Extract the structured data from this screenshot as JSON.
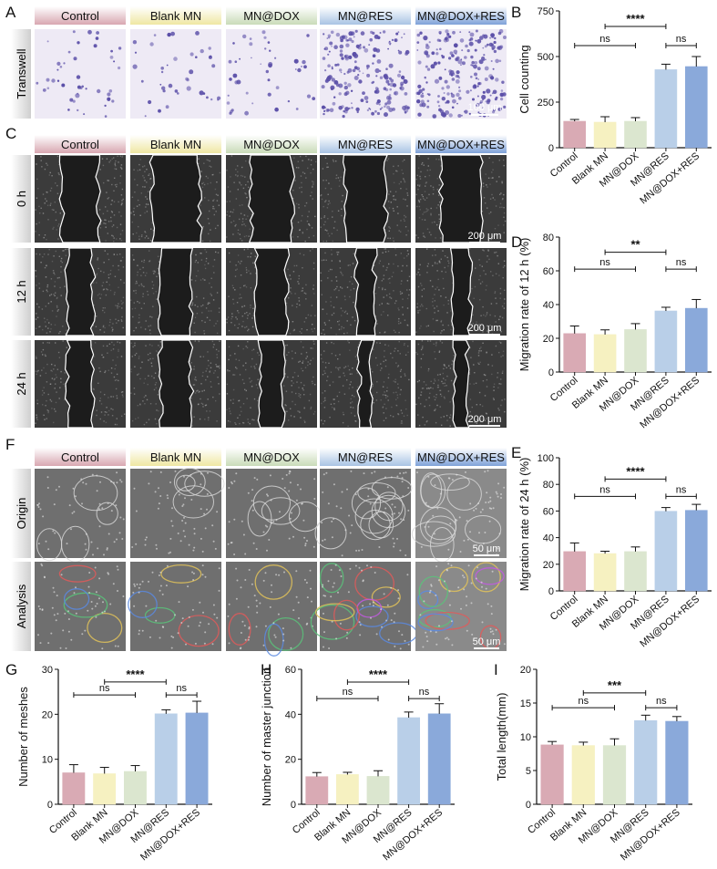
{
  "colors": {
    "bars": [
      "#d9aab4",
      "#f6f1c1",
      "#dbe6cf",
      "#b9cfe8",
      "#8aa9da"
    ],
    "header_tabs": [
      "#d8a7b1",
      "#efe7a3",
      "#c9dbb8",
      "#a9c3e4",
      "#7fa2d8"
    ],
    "crystal_violet": "#5b4fa8",
    "micrograph_dark": "#1c1c1c",
    "tube_gray": "#6f6f6f"
  },
  "panel_labels": {
    "A": "A",
    "B": "B",
    "C": "C",
    "D": "D",
    "E": "E",
    "F": "F",
    "G": "G",
    "H": "H",
    "I": "I"
  },
  "groups": [
    "Control",
    "Blank MN",
    "MN@DOX",
    "MN@RES",
    "MN@DOX+RES"
  ],
  "row_labels": {
    "transwell": "Transwell",
    "h0": "0 h",
    "h12": "12 h",
    "h24": "24 h",
    "origin": "Origin",
    "analysis": "Analysis"
  },
  "scale_bars": {
    "transwell": "100 μm",
    "scratch": "200 μm",
    "tube": "50 μm"
  },
  "icons": {
    "header_tab": "gradient-tab",
    "significance": "bracket"
  },
  "chart_data": [
    {
      "id": "B",
      "type": "bar",
      "categories": [
        "Control",
        "Blank MN",
        "MN@DOX",
        "MN@RES",
        "MN@DOX+RES"
      ],
      "values": [
        145,
        140,
        145,
        428,
        445
      ],
      "errors": [
        10,
        30,
        20,
        30,
        55
      ],
      "ylabel": "Cell counting",
      "ylim": [
        0,
        750
      ],
      "yticks": [
        0,
        250,
        500,
        750
      ],
      "annotations": [
        {
          "from": 0,
          "to": 2,
          "text": "ns",
          "y": 560
        },
        {
          "from": 1,
          "to": 3,
          "text": "****",
          "y": 665
        },
        {
          "from": 3,
          "to": 4,
          "text": "ns",
          "y": 560
        }
      ]
    },
    {
      "id": "D",
      "type": "bar",
      "categories": [
        "Control",
        "Blank MN",
        "MN@DOX",
        "MN@RES",
        "MN@DOX+RES"
      ],
      "values": [
        22.8,
        22.2,
        25.2,
        36.2,
        37.8
      ],
      "errors": [
        4.5,
        2.8,
        3.5,
        2.2,
        5.2
      ],
      "ylabel": "Migration rate of 12 h (%)",
      "ylim": [
        0,
        80
      ],
      "yticks": [
        0,
        20,
        40,
        60,
        80
      ],
      "annotations": [
        {
          "from": 0,
          "to": 2,
          "text": "ns",
          "y": 61
        },
        {
          "from": 1,
          "to": 3,
          "text": "**",
          "y": 71
        },
        {
          "from": 3,
          "to": 4,
          "text": "ns",
          "y": 61
        }
      ]
    },
    {
      "id": "E",
      "type": "bar",
      "categories": [
        "Control",
        "Blank MN",
        "MN@DOX",
        "MN@RES",
        "MN@DOX+RES"
      ],
      "values": [
        29.5,
        28.0,
        29.5,
        59.8,
        60.5
      ],
      "errors": [
        6.5,
        1.8,
        3.5,
        2.8,
        4.5
      ],
      "ylabel": "Migration rate of 24 h (%)",
      "ylim": [
        0,
        100
      ],
      "yticks": [
        0,
        20,
        40,
        60,
        80,
        100
      ],
      "annotations": [
        {
          "from": 0,
          "to": 2,
          "text": "ns",
          "y": 71
        },
        {
          "from": 1,
          "to": 3,
          "text": "****",
          "y": 84
        },
        {
          "from": 3,
          "to": 4,
          "text": "ns",
          "y": 71
        }
      ]
    },
    {
      "id": "G",
      "type": "bar",
      "categories": [
        "Control",
        "Blank MN",
        "MN@DOX",
        "MN@RES",
        "MN@DOX+RES"
      ],
      "values": [
        7.0,
        6.8,
        7.3,
        20.1,
        20.3
      ],
      "errors": [
        1.8,
        1.4,
        1.3,
        0.9,
        2.6
      ],
      "ylabel": "Number of meshes",
      "ylim": [
        0,
        30
      ],
      "yticks": [
        0,
        10,
        20,
        30
      ],
      "annotations": [
        {
          "from": 0,
          "to": 2,
          "text": "ns",
          "y": 24.3
        },
        {
          "from": 1,
          "to": 3,
          "text": "****",
          "y": 27.2
        },
        {
          "from": 3,
          "to": 4,
          "text": "ns",
          "y": 24.3
        }
      ]
    },
    {
      "id": "H",
      "type": "bar",
      "categories": [
        "Control",
        "Blank MN",
        "MN@DOX",
        "MN@RES",
        "MN@DOX+RES"
      ],
      "values": [
        12.3,
        13.2,
        12.4,
        38.5,
        40.2
      ],
      "errors": [
        1.8,
        1.0,
        2.5,
        2.5,
        4.5
      ],
      "ylabel": "Number of master junction",
      "ylim": [
        0,
        60
      ],
      "yticks": [
        0,
        20,
        40,
        60
      ],
      "annotations": [
        {
          "from": 0,
          "to": 2,
          "text": "ns",
          "y": 47
        },
        {
          "from": 1,
          "to": 3,
          "text": "****",
          "y": 54.3
        },
        {
          "from": 3,
          "to": 4,
          "text": "ns",
          "y": 47
        }
      ]
    },
    {
      "id": "I",
      "type": "bar",
      "categories": [
        "Control",
        "Blank MN",
        "MN@DOX",
        "MN@RES",
        "MN@DOX+RES"
      ],
      "values": [
        8.8,
        8.7,
        8.7,
        12.4,
        12.3
      ],
      "errors": [
        0.5,
        0.5,
        1.0,
        0.8,
        0.7
      ],
      "ylabel": "Total length(mm)",
      "ylim": [
        0,
        20
      ],
      "yticks": [
        0,
        5,
        10,
        15,
        20
      ],
      "annotations": [
        {
          "from": 0,
          "to": 2,
          "text": "ns",
          "y": 14.3
        },
        {
          "from": 1,
          "to": 3,
          "text": "***",
          "y": 16.5
        },
        {
          "from": 3,
          "to": 4,
          "text": "ns",
          "y": 14.3
        }
      ]
    }
  ]
}
